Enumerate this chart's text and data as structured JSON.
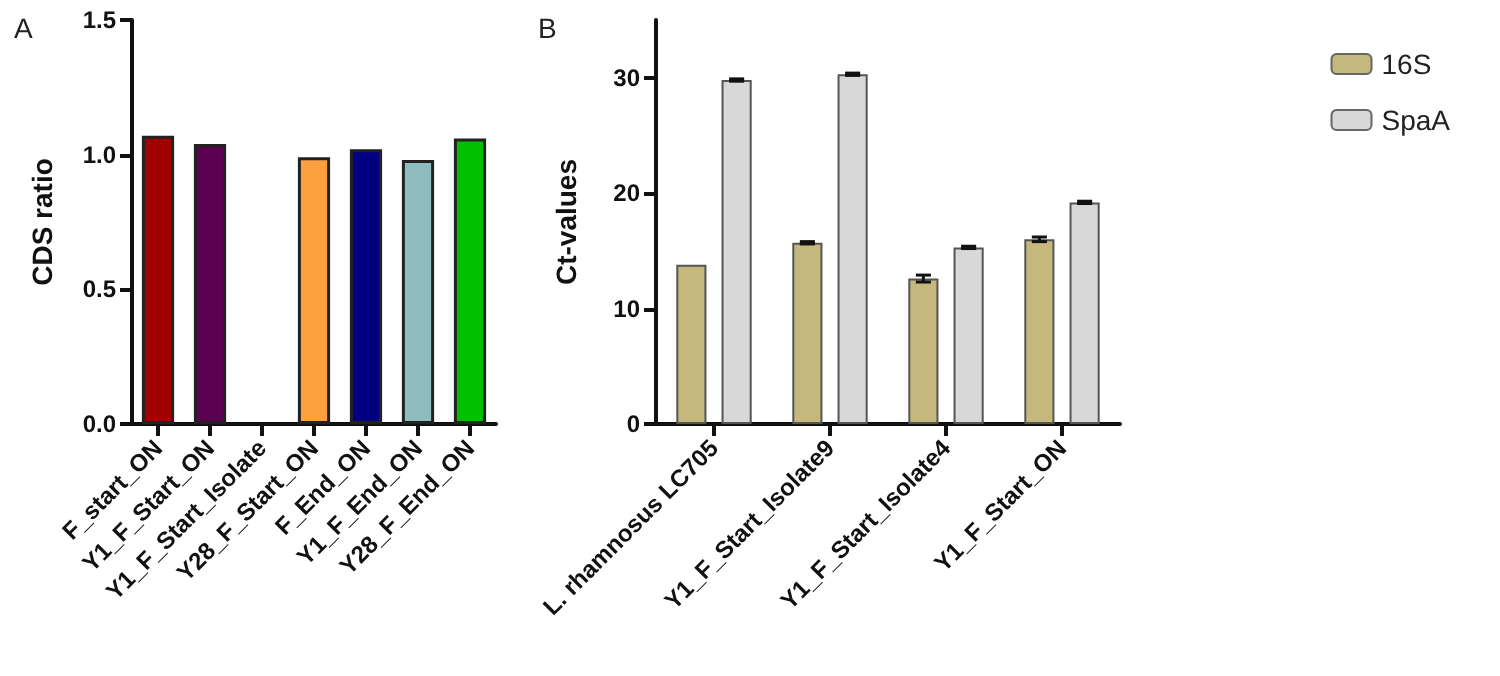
{
  "chart_data": [
    {
      "type": "bar",
      "title": "A",
      "ylabel": "CDS ratio",
      "categories": [
        "F_start_ON",
        "Y1_F_Start_ON",
        "Y1_F_Start_Isolate",
        "Y28_F_Start_ON",
        "F_End_ON",
        "Y1_F_End_ON",
        "Y28_F_End_ON"
      ],
      "values": [
        1.07,
        1.04,
        null,
        0.99,
        1.02,
        0.98,
        1.06
      ],
      "colors": [
        "#a00000",
        "#5c0050",
        "#888888",
        "#ffa040",
        "#000080",
        "#8fbcbc",
        "#00c000"
      ],
      "ylim": [
        0,
        1.5
      ],
      "yticks": [
        {
          "value": 0,
          "label": "0.0"
        },
        {
          "value": 0.5,
          "label": "0.5"
        },
        {
          "value": 1,
          "label": "1.0"
        },
        {
          "value": 1.5,
          "label": "1.5"
        }
      ],
      "grid": false,
      "legend": false
    },
    {
      "type": "bar",
      "title": "B",
      "ylabel": "Ct-values",
      "categories": [
        "L. rhamnosus LC705",
        "Y1_F_Start_Isolate9",
        "Y1_F_Start_Isolate4",
        "Y1_F_Start_ON"
      ],
      "series": [
        {
          "name": "16S",
          "color": "#c4b87c",
          "values": [
            13.8,
            15.7,
            12.6,
            16.0
          ],
          "errors": [
            null,
            0.1,
            0.3,
            0.2
          ]
        },
        {
          "name": "SpaA",
          "color": "#d8d8d8",
          "values": [
            29.8,
            30.3,
            15.3,
            19.2
          ],
          "errors": [
            0.1,
            0.1,
            0.1,
            0.1
          ]
        }
      ],
      "ylim": [
        0,
        35
      ],
      "yticks": [
        0,
        10,
        20,
        30
      ],
      "grid": false,
      "legend": "top right"
    }
  ]
}
